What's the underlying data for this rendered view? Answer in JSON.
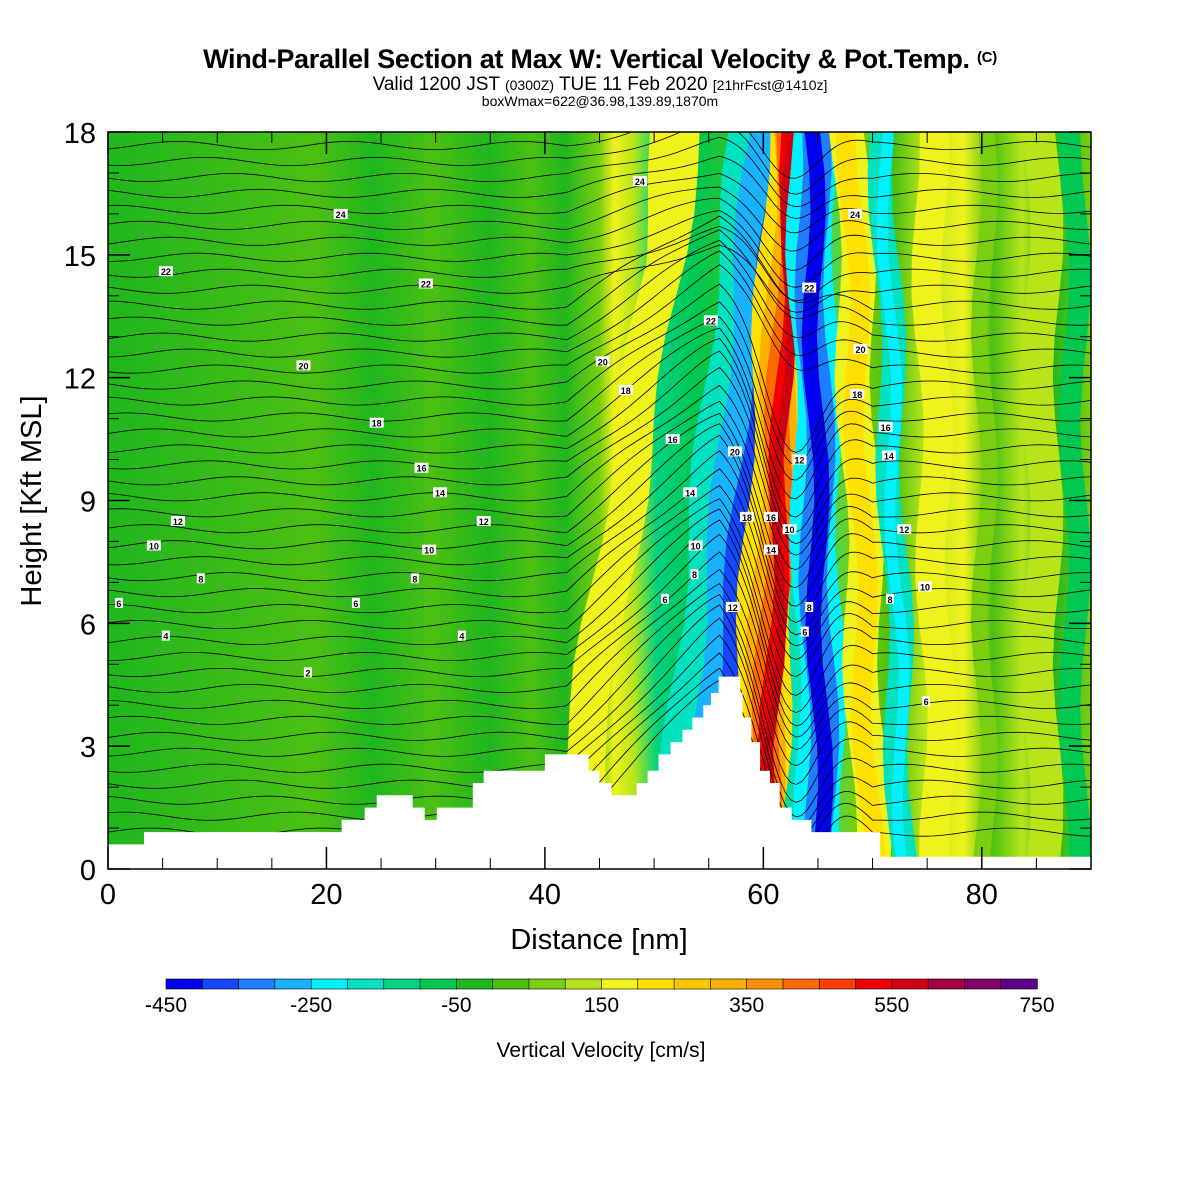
{
  "title": {
    "main": "Wind-Parallel Section at Max W: Vertical Velocity & Pot.Temp.",
    "copyright": "(C)",
    "valid_prefix": "Valid 1200 JST",
    "zulu": "(0300Z)",
    "valid_date": "TUE 11 Feb 2020",
    "forecast": "[21hrFcst@1410z]",
    "box_info": "boxWmax=622@36.98,139.89,1870m"
  },
  "chart_data": {
    "type": "heatmap",
    "xlabel": "Distance [nm]",
    "ylabel": "Height [Kft MSL]",
    "xlim": [
      0,
      90
    ],
    "ylim": [
      0,
      18
    ],
    "x_ticks": [
      "0",
      "20",
      "40",
      "60",
      "80"
    ],
    "y_ticks": [
      "0",
      "3",
      "6",
      "9",
      "12",
      "15",
      "18"
    ],
    "colorbar": {
      "label": "Vertical Velocity [cm/s]",
      "tick_labels": [
        "-450",
        "-250",
        "-50",
        "150",
        "350",
        "550",
        "750"
      ],
      "levels": [
        -450,
        -400,
        -350,
        -300,
        -250,
        -200,
        -150,
        -100,
        -50,
        0,
        50,
        100,
        150,
        200,
        250,
        300,
        350,
        400,
        450,
        500,
        550,
        600,
        650,
        700,
        750
      ],
      "colors": [
        "#0000ee",
        "#1648ff",
        "#1e7eff",
        "#19b2ff",
        "#00f2ff",
        "#00e2c0",
        "#00d280",
        "#00c850",
        "#1fb71f",
        "#4cc012",
        "#79cf10",
        "#b8e51a",
        "#f0f21c",
        "#ffe000",
        "#ffc800",
        "#ffb000",
        "#ff9000",
        "#ff6a00",
        "#ff4000",
        "#f00000",
        "#cc0010",
        "#a50040",
        "#820066",
        "#5a0089"
      ]
    },
    "terrain_kft": [
      [
        0,
        0.6
      ],
      [
        3.3,
        0.6
      ],
      [
        3.3,
        0.9
      ],
      [
        21.4,
        0.9
      ],
      [
        21.4,
        1.2
      ],
      [
        23.5,
        1.2
      ],
      [
        23.5,
        1.5
      ],
      [
        24.6,
        1.5
      ],
      [
        24.6,
        1.8
      ],
      [
        27.9,
        1.8
      ],
      [
        27.9,
        1.5
      ],
      [
        29.0,
        1.5
      ],
      [
        29.0,
        1.2
      ],
      [
        30.1,
        1.2
      ],
      [
        30.1,
        1.5
      ],
      [
        33.4,
        1.5
      ],
      [
        33.4,
        2.1
      ],
      [
        34.4,
        2.1
      ],
      [
        34.4,
        2.4
      ],
      [
        40.0,
        2.4
      ],
      [
        40.0,
        2.8
      ],
      [
        44.0,
        2.8
      ],
      [
        44.0,
        2.4
      ],
      [
        45.0,
        2.4
      ],
      [
        45.0,
        2.1
      ],
      [
        46.1,
        2.1
      ],
      [
        46.1,
        1.8
      ],
      [
        48.4,
        1.8
      ],
      [
        48.4,
        2.1
      ],
      [
        49.4,
        2.1
      ],
      [
        49.4,
        2.4
      ],
      [
        50.4,
        2.4
      ],
      [
        50.4,
        2.8
      ],
      [
        51.5,
        2.8
      ],
      [
        51.5,
        3.1
      ],
      [
        52.6,
        3.1
      ],
      [
        52.6,
        3.4
      ],
      [
        53.5,
        3.4
      ],
      [
        53.5,
        3.7
      ],
      [
        54.5,
        3.7
      ],
      [
        54.5,
        4.0
      ],
      [
        55.2,
        4.0
      ],
      [
        55.2,
        4.3
      ],
      [
        55.9,
        4.3
      ],
      [
        55.9,
        4.7
      ],
      [
        57.9,
        4.7
      ],
      [
        57.9,
        4.3
      ],
      [
        58.1,
        4.3
      ],
      [
        58.1,
        3.7
      ],
      [
        58.9,
        3.7
      ],
      [
        58.9,
        3.1
      ],
      [
        59.7,
        3.1
      ],
      [
        59.7,
        2.4
      ],
      [
        60.6,
        2.4
      ],
      [
        60.6,
        2.1
      ],
      [
        61.5,
        2.1
      ],
      [
        61.5,
        1.5
      ],
      [
        62.6,
        1.5
      ],
      [
        62.6,
        1.2
      ],
      [
        64.4,
        1.2
      ],
      [
        64.4,
        0.9
      ],
      [
        70.7,
        0.9
      ],
      [
        70.7,
        0.3
      ],
      [
        90,
        0.3
      ]
    ],
    "theta_contour_labels": [
      {
        "label": "24",
        "x": 21.3,
        "y": 16.0
      },
      {
        "label": "22",
        "x": 5.3,
        "y": 14.6
      },
      {
        "label": "22",
        "x": 29.1,
        "y": 14.3
      },
      {
        "label": "20",
        "x": 17.9,
        "y": 12.3
      },
      {
        "label": "18",
        "x": 24.6,
        "y": 10.9
      },
      {
        "label": "16",
        "x": 28.7,
        "y": 9.8
      },
      {
        "label": "14",
        "x": 30.4,
        "y": 9.2
      },
      {
        "label": "12",
        "x": 6.4,
        "y": 8.5
      },
      {
        "label": "10",
        "x": 4.2,
        "y": 7.9
      },
      {
        "label": "8",
        "x": 8.5,
        "y": 7.1
      },
      {
        "label": "6",
        "x": 1.0,
        "y": 6.5
      },
      {
        "label": "4",
        "x": 5.3,
        "y": 5.7
      },
      {
        "label": "2",
        "x": 18.3,
        "y": 4.8
      },
      {
        "label": "12",
        "x": 34.4,
        "y": 8.5
      },
      {
        "label": "10",
        "x": 29.4,
        "y": 7.8
      },
      {
        "label": "8",
        "x": 28.1,
        "y": 7.1
      },
      {
        "label": "6",
        "x": 22.7,
        "y": 6.5
      },
      {
        "label": "4",
        "x": 32.4,
        "y": 5.7
      },
      {
        "label": "24",
        "x": 48.7,
        "y": 16.8
      },
      {
        "label": "20",
        "x": 45.3,
        "y": 12.4
      },
      {
        "label": "18",
        "x": 47.4,
        "y": 11.7
      },
      {
        "label": "16",
        "x": 51.7,
        "y": 10.5
      },
      {
        "label": "14",
        "x": 53.3,
        "y": 9.2
      },
      {
        "label": "10",
        "x": 53.8,
        "y": 7.9
      },
      {
        "label": "8",
        "x": 53.7,
        "y": 7.2
      },
      {
        "label": "6",
        "x": 51.0,
        "y": 6.6
      },
      {
        "label": "22",
        "x": 55.2,
        "y": 13.4
      },
      {
        "label": "20",
        "x": 57.4,
        "y": 10.2
      },
      {
        "label": "18",
        "x": 58.5,
        "y": 8.6
      },
      {
        "label": "16",
        "x": 60.7,
        "y": 8.6
      },
      {
        "label": "14",
        "x": 60.7,
        "y": 7.8
      },
      {
        "label": "12",
        "x": 57.2,
        "y": 6.4
      },
      {
        "label": "10",
        "x": 62.4,
        "y": 8.3
      },
      {
        "label": "12",
        "x": 63.3,
        "y": 10.0
      },
      {
        "label": "22",
        "x": 64.2,
        "y": 14.2
      },
      {
        "label": "8",
        "x": 64.2,
        "y": 6.4
      },
      {
        "label": "6",
        "x": 63.8,
        "y": 5.8
      },
      {
        "label": "24",
        "x": 68.4,
        "y": 16.0
      },
      {
        "label": "20",
        "x": 68.9,
        "y": 12.7
      },
      {
        "label": "18",
        "x": 68.6,
        "y": 11.6
      },
      {
        "label": "16",
        "x": 71.2,
        "y": 10.8
      },
      {
        "label": "14",
        "x": 71.5,
        "y": 10.1
      },
      {
        "label": "12",
        "x": 72.9,
        "y": 8.3
      },
      {
        "label": "10",
        "x": 74.8,
        "y": 6.9
      },
      {
        "label": "8",
        "x": 71.6,
        "y": 6.6
      },
      {
        "label": "6",
        "x": 74.9,
        "y": 4.1
      }
    ]
  }
}
